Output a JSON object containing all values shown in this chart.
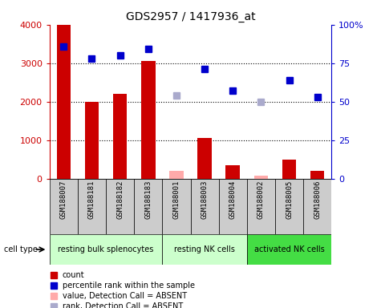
{
  "title": "GDS2957 / 1417936_at",
  "samples": [
    "GSM188007",
    "GSM188181",
    "GSM188182",
    "GSM188183",
    "GSM188001",
    "GSM188003",
    "GSM188004",
    "GSM188002",
    "GSM188005",
    "GSM188006"
  ],
  "count_values": [
    4000,
    2000,
    2200,
    3050,
    null,
    1050,
    350,
    null,
    500,
    200
  ],
  "count_absent_values": [
    null,
    null,
    null,
    null,
    200,
    null,
    null,
    80,
    null,
    null
  ],
  "rank_values": [
    86,
    78,
    80,
    84,
    null,
    71,
    57,
    null,
    64,
    53
  ],
  "rank_absent_values": [
    null,
    null,
    null,
    null,
    54,
    null,
    null,
    50,
    null,
    null
  ],
  "cell_types": [
    {
      "label": "resting bulk splenocytes",
      "start": 0,
      "end": 4,
      "color": "#ccffcc"
    },
    {
      "label": "resting NK cells",
      "start": 4,
      "end": 7,
      "color": "#ccffcc"
    },
    {
      "label": "activated NK cells",
      "start": 7,
      "end": 10,
      "color": "#44dd44"
    }
  ],
  "ylim_left": [
    0,
    4000
  ],
  "ylim_right": [
    0,
    100
  ],
  "yticks_left": [
    0,
    1000,
    2000,
    3000,
    4000
  ],
  "yticks_right": [
    0,
    25,
    50,
    75,
    100
  ],
  "bar_color": "#cc0000",
  "bar_absent_color": "#ffaaaa",
  "dot_color": "#0000cc",
  "dot_absent_color": "#aaaacc",
  "background_color": "#ffffff",
  "sample_bg_color": "#cccccc",
  "grid_dotted_color": "#000000",
  "legend_items": [
    {
      "color": "#cc0000",
      "marker": "s",
      "label": "count"
    },
    {
      "color": "#0000cc",
      "marker": "s",
      "label": "percentile rank within the sample"
    },
    {
      "color": "#ffaaaa",
      "marker": "s",
      "label": "value, Detection Call = ABSENT"
    },
    {
      "color": "#aaaacc",
      "marker": "s",
      "label": "rank, Detection Call = ABSENT"
    }
  ]
}
